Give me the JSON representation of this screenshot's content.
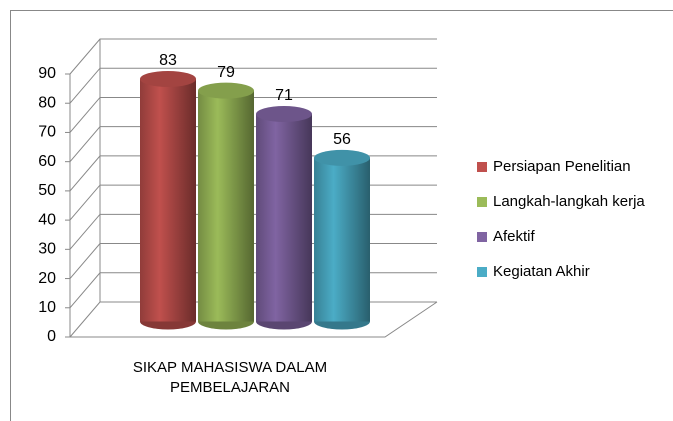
{
  "chart_data": {
    "type": "bar3d",
    "categories": [
      "SIKAP MAHASISWA DALAM PEMBELAJARAN"
    ],
    "series": [
      {
        "name": "Persiapan Penelitian",
        "color": "#c0504d",
        "values": [
          83
        ]
      },
      {
        "name": "Langkah-langkah kerja",
        "color": "#9bbb59",
        "values": [
          79
        ]
      },
      {
        "name": "Afektif",
        "color": "#8064a2",
        "values": [
          71
        ]
      },
      {
        "name": "Kegiatan Akhir",
        "color": "#4bacc6",
        "values": [
          56
        ]
      }
    ],
    "ylim": [
      0,
      90
    ],
    "yticks": [
      0,
      10,
      20,
      30,
      40,
      50,
      60,
      70,
      80,
      90
    ],
    "grid": true,
    "legend": "right",
    "data_labels": true
  }
}
